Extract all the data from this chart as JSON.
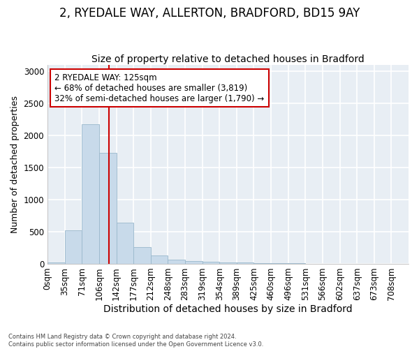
{
  "title": "2, RYEDALE WAY, ALLERTON, BRADFORD, BD15 9AY",
  "subtitle": "Size of property relative to detached houses in Bradford",
  "xlabel": "Distribution of detached houses by size in Bradford",
  "ylabel": "Number of detached properties",
  "footer_line1": "Contains HM Land Registry data © Crown copyright and database right 2024.",
  "footer_line2": "Contains public sector information licensed under the Open Government Licence v3.0.",
  "bar_labels": [
    "0sqm",
    "35sqm",
    "71sqm",
    "106sqm",
    "142sqm",
    "177sqm",
    "212sqm",
    "248sqm",
    "283sqm",
    "319sqm",
    "354sqm",
    "389sqm",
    "425sqm",
    "460sqm",
    "496sqm",
    "531sqm",
    "566sqm",
    "602sqm",
    "637sqm",
    "673sqm",
    "708sqm"
  ],
  "bar_values": [
    25,
    520,
    2180,
    1730,
    640,
    265,
    130,
    70,
    40,
    30,
    20,
    25,
    5,
    5,
    5,
    0,
    0,
    0,
    0,
    0,
    0
  ],
  "bar_color": "#c8daea",
  "bar_edge_color": "#9ab8cc",
  "property_line_x": 125,
  "bin_width": 35,
  "annotation_text": "2 RYEDALE WAY: 125sqm\n← 68% of detached houses are smaller (3,819)\n32% of semi-detached houses are larger (1,790) →",
  "annotation_box_color": "white",
  "annotation_box_edge_color": "#cc0000",
  "vline_color": "#cc0000",
  "ylim": [
    0,
    3100
  ],
  "yticks": [
    0,
    500,
    1000,
    1500,
    2000,
    2500,
    3000
  ],
  "background_color": "#ffffff",
  "plot_bg_color": "#e8eef4",
  "grid_color": "#ffffff",
  "title_fontsize": 12,
  "subtitle_fontsize": 10,
  "xlabel_fontsize": 10,
  "ylabel_fontsize": 9,
  "tick_fontsize": 8.5
}
